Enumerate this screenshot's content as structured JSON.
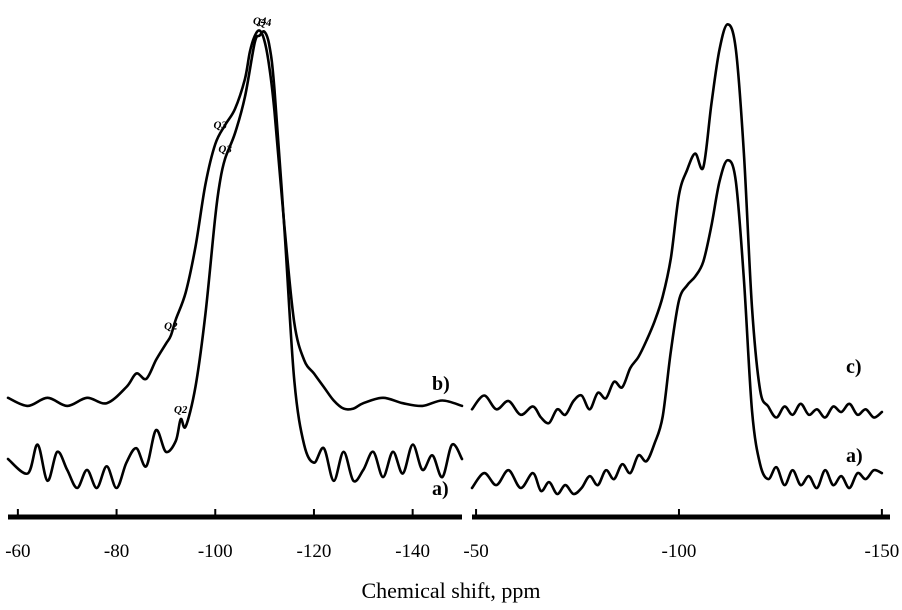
{
  "xlabel": "Chemical shift, ppm",
  "chart_data": [
    {
      "type": "line",
      "xlabel": "Chemical shift, ppm",
      "xlim": [
        -58,
        -150
      ],
      "xticks": [
        -60,
        -80,
        -100,
        -120,
        -140
      ],
      "xtick_labels": [
        "-60",
        "-80",
        "-100",
        "-120",
        "-140"
      ],
      "yaxis_shown": false,
      "grid": false,
      "series": [
        {
          "name": "a)",
          "x": [
            -58,
            -62,
            -64,
            -66,
            -68,
            -70,
            -72,
            -74,
            -76,
            -78,
            -80,
            -82,
            -84,
            -86,
            -88,
            -90,
            -92,
            -93,
            -94,
            -96,
            -98,
            -100,
            -101,
            -102,
            -104,
            -106,
            -108,
            -109,
            -110,
            -111,
            -112,
            -114,
            -116,
            -118,
            -120,
            -122,
            -124,
            -126,
            -128,
            -130,
            -132,
            -134,
            -136,
            -138,
            -140,
            -142,
            -144,
            -146,
            -148,
            -150
          ],
          "y": [
            0.08,
            0.04,
            0.12,
            0.02,
            0.1,
            0.05,
            0.0,
            0.05,
            0.0,
            0.06,
            0.0,
            0.07,
            0.11,
            0.06,
            0.16,
            0.1,
            0.13,
            0.19,
            0.17,
            0.28,
            0.48,
            0.75,
            0.85,
            0.91,
            0.98,
            1.08,
            1.23,
            1.25,
            1.26,
            1.22,
            1.1,
            0.72,
            0.3,
            0.12,
            0.07,
            0.11,
            0.02,
            0.1,
            0.02,
            0.05,
            0.1,
            0.03,
            0.1,
            0.04,
            0.12,
            0.05,
            0.09,
            0.03,
            0.12,
            0.08
          ]
        },
        {
          "name": "b)",
          "x": [
            -58,
            -62,
            -66,
            -70,
            -74,
            -78,
            -82,
            -84,
            -86,
            -88,
            -90,
            -91,
            -92,
            -94,
            -96,
            -98,
            -100,
            -102,
            -104,
            -106,
            -107,
            -108,
            -109,
            -110,
            -111,
            -112,
            -114,
            -116,
            -118,
            -120,
            -122,
            -124,
            -126,
            -128,
            -130,
            -134,
            -138,
            -142,
            -146,
            -150
          ],
          "y": [
            0.06,
            0.03,
            0.06,
            0.03,
            0.06,
            0.04,
            0.1,
            0.15,
            0.13,
            0.2,
            0.26,
            0.29,
            0.35,
            0.45,
            0.62,
            0.85,
            1.0,
            1.07,
            1.13,
            1.24,
            1.34,
            1.4,
            1.42,
            1.38,
            1.28,
            1.12,
            0.7,
            0.34,
            0.2,
            0.15,
            0.1,
            0.05,
            0.02,
            0.02,
            0.04,
            0.06,
            0.04,
            0.03,
            0.05,
            0.03
          ]
        }
      ],
      "annotations": [
        {
          "text": "Q4",
          "x": -109,
          "series": "b)"
        },
        {
          "text": "Q4",
          "x": -110,
          "series": "a)"
        },
        {
          "text": "Q3",
          "x": -101,
          "series": "b)"
        },
        {
          "text": "Q3",
          "x": -102,
          "series": "a)"
        },
        {
          "text": "Q2",
          "x": -91,
          "series": "b)"
        },
        {
          "text": "Q2",
          "x": -93,
          "series": "a)"
        }
      ]
    },
    {
      "type": "line",
      "xlabel": "Chemical shift, ppm",
      "xlim": [
        -49,
        -152
      ],
      "xticks": [
        -50,
        -100,
        -150
      ],
      "xtick_labels": [
        "-50",
        "-100",
        "-150"
      ],
      "yaxis_shown": false,
      "grid": false,
      "series": [
        {
          "name": "a)",
          "x": [
            -49,
            -52,
            -55,
            -58,
            -61,
            -64,
            -66,
            -68,
            -70,
            -72,
            -74,
            -76,
            -78,
            -80,
            -82,
            -84,
            -86,
            -88,
            -90,
            -92,
            -94,
            -96,
            -98,
            -100,
            -102,
            -104,
            -106,
            -108,
            -110,
            -112,
            -114,
            -116,
            -118,
            -120,
            -122,
            -124,
            -126,
            -128,
            -130,
            -132,
            -134,
            -136,
            -138,
            -140,
            -142,
            -144,
            -146,
            -148,
            -150
          ],
          "y": [
            0.02,
            0.07,
            0.03,
            0.08,
            0.02,
            0.07,
            0.01,
            0.04,
            0.0,
            0.03,
            0.0,
            0.02,
            0.06,
            0.03,
            0.08,
            0.05,
            0.1,
            0.07,
            0.13,
            0.11,
            0.17,
            0.26,
            0.48,
            0.65,
            0.7,
            0.73,
            0.78,
            0.9,
            1.05,
            1.12,
            1.05,
            0.72,
            0.28,
            0.1,
            0.05,
            0.09,
            0.03,
            0.08,
            0.03,
            0.06,
            0.02,
            0.08,
            0.03,
            0.06,
            0.02,
            0.07,
            0.05,
            0.08,
            0.07
          ]
        },
        {
          "name": "c)",
          "x": [
            -49,
            -52,
            -55,
            -58,
            -61,
            -64,
            -66,
            -68,
            -70,
            -72,
            -74,
            -76,
            -78,
            -80,
            -82,
            -84,
            -86,
            -88,
            -90,
            -92,
            -94,
            -96,
            -98,
            -100,
            -102,
            -104,
            -106,
            -108,
            -110,
            -112,
            -114,
            -116,
            -118,
            -120,
            -122,
            -124,
            -126,
            -128,
            -130,
            -132,
            -134,
            -136,
            -138,
            -140,
            -142,
            -144,
            -146,
            -148,
            -150
          ],
          "y": [
            0.05,
            0.1,
            0.05,
            0.08,
            0.03,
            0.06,
            0.02,
            0.0,
            0.05,
            0.03,
            0.08,
            0.1,
            0.05,
            0.11,
            0.09,
            0.15,
            0.13,
            0.2,
            0.24,
            0.3,
            0.37,
            0.46,
            0.6,
            0.83,
            0.92,
            0.98,
            0.93,
            1.16,
            1.36,
            1.45,
            1.36,
            0.98,
            0.42,
            0.12,
            0.06,
            0.02,
            0.06,
            0.03,
            0.07,
            0.03,
            0.05,
            0.02,
            0.06,
            0.04,
            0.07,
            0.03,
            0.05,
            0.02,
            0.04
          ]
        }
      ]
    }
  ]
}
